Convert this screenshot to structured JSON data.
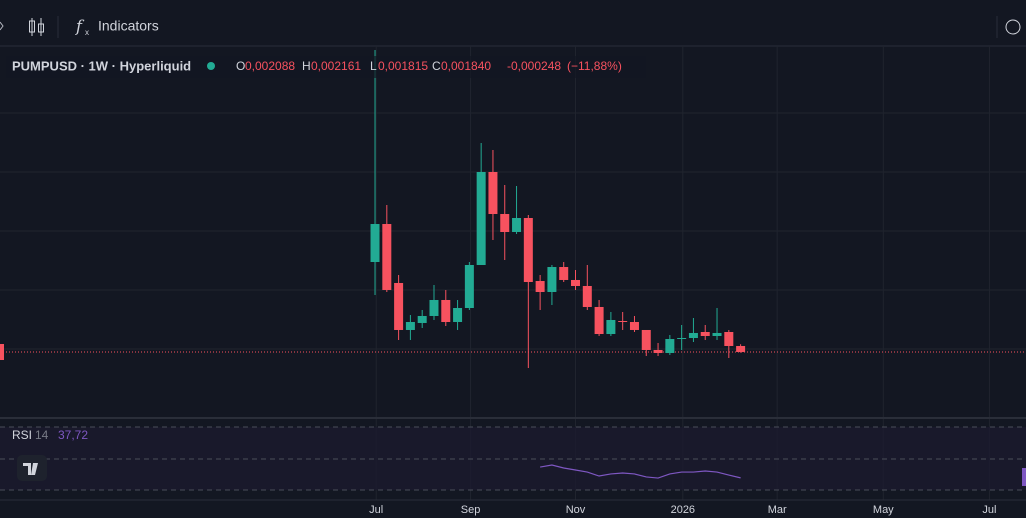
{
  "toolbar": {
    "indicators": "Indicators"
  },
  "legend": {
    "symbol": "PUMPUSD · 1W · Hyperliquid",
    "o_label": "O",
    "o_value": "0,002088",
    "h_label": "H",
    "h_value": "0,002161",
    "l_label": "L",
    "l_value": "0,001815",
    "c_label": "C",
    "c_value": "0,001840",
    "change": "-0,000248",
    "change_pct": "(−11,88%)"
  },
  "chart_data": {
    "type": "candlestick",
    "up_color": "#22ab94",
    "down_color": "#f7525f",
    "open": [
      0.005557,
      0.007126,
      0.00469,
      0.002749,
      0.003038,
      0.003327,
      0.003988,
      0.003079,
      0.003657,
      0.005433,
      0.009274,
      0.007539,
      0.006796,
      0.007374,
      0.004772,
      0.004318,
      0.00535,
      0.004814,
      0.004566,
      0.003699,
      0.002583,
      0.00312,
      0.003079,
      0.002749,
      0.001923,
      0.001799,
      0.002377,
      0.002418,
      0.002666,
      0.002501,
      0.002666,
      0.002088
    ],
    "high": [
      0.014313,
      0.007911,
      0.00502,
      0.003368,
      0.003575,
      0.004607,
      0.004401,
      0.003988,
      0.005557,
      0.010472,
      0.010183,
      0.008737,
      0.008696,
      0.007498,
      0.00502,
      0.005433,
      0.005557,
      0.005227,
      0.005433,
      0.003988,
      0.003492,
      0.003492,
      0.003327,
      0.002749,
      0.002212,
      0.002542,
      0.002955,
      0.003244,
      0.002955,
      0.003657,
      0.002749,
      0.002161
    ],
    "low": [
      0.004194,
      0.004318,
      0.002336,
      0.002336,
      0.002831,
      0.003162,
      0.002914,
      0.002749,
      0.003575,
      0.005433,
      0.006466,
      0.00564,
      0.006713,
      0.001179,
      0.003575,
      0.003781,
      0.004731,
      0.004401,
      0.003575,
      0.002501,
      0.002501,
      0.002749,
      0.002666,
      0.001675,
      0.001675,
      0.001716,
      0.001923,
      0.002253,
      0.002336,
      0.002336,
      0.001592,
      0.001815
    ],
    "close": [
      0.007126,
      0.004401,
      0.002749,
      0.003079,
      0.003327,
      0.003988,
      0.003079,
      0.003657,
      0.005433,
      0.009274,
      0.007539,
      0.006796,
      0.007374,
      0.004731,
      0.004318,
      0.00535,
      0.004814,
      0.004566,
      0.003699,
      0.002583,
      0.003162,
      0.003079,
      0.002749,
      0.001923,
      0.001799,
      0.002377,
      0.002418,
      0.002625,
      0.002501,
      0.002625,
      0.002088,
      0.00184
    ],
    "xlim": [
      -31.8,
      55.2
    ],
    "ylim": [
      -0.000762,
      0.014519
    ],
    "xticks": [
      {
        "value": 0.1,
        "label": "Jul"
      },
      {
        "value": 8.1,
        "label": "Sep"
      },
      {
        "value": 17,
        "label": "Nov"
      },
      {
        "value": 26.1,
        "label": "2026"
      },
      {
        "value": 34.1,
        "label": "Mar"
      },
      {
        "value": 43.1,
        "label": "May"
      },
      {
        "value": 52.1,
        "label": "Jul"
      }
    ],
    "rsi": {
      "name": "RSI",
      "length": "14",
      "last": "37,72",
      "color": "#7e57c2",
      "ylim": [
        13.5,
        73.2
      ],
      "values": [
        null,
        null,
        null,
        null,
        null,
        null,
        null,
        null,
        null,
        null,
        null,
        null,
        null,
        null,
        44.6,
        45.9,
        44.0,
        42.7,
        41.4,
        38.9,
        40.2,
        40.8,
        40.2,
        38.3,
        37.6,
        40.2,
        41.4,
        41.4,
        42.1,
        41.4,
        39.5,
        37.72
      ]
    }
  }
}
